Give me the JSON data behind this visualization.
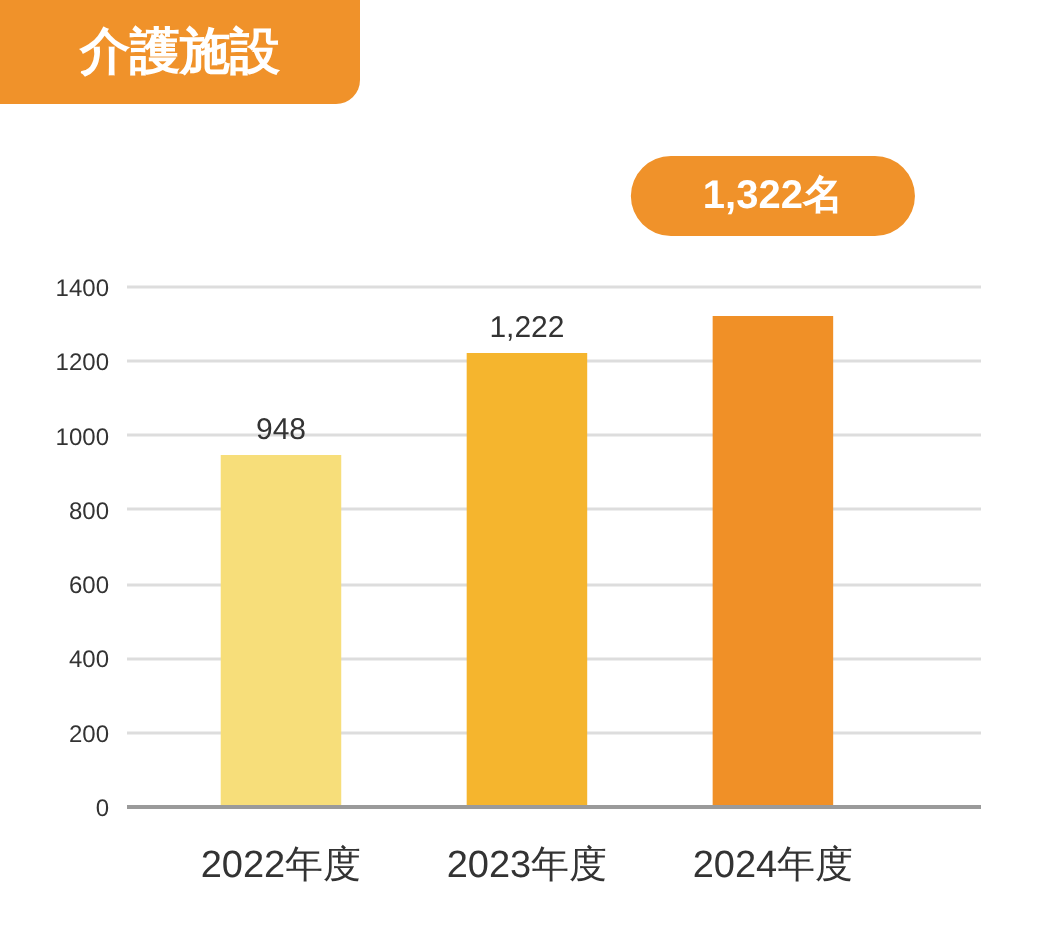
{
  "chart_data": {
    "type": "bar",
    "title": "介護施設",
    "categories": [
      "2022年度",
      "2023年度",
      "2024年度"
    ],
    "values": [
      948,
      1222,
      1322
    ],
    "colors": [
      "#f7de7a",
      "#f5b52e",
      "#f09027"
    ],
    "ylim": [
      0,
      1400
    ],
    "yticks": [
      0,
      200,
      400,
      600,
      800,
      1000,
      1200,
      1400
    ],
    "grid": "y",
    "value_labels": [
      "948",
      "1,222",
      null
    ],
    "annotations": [
      {
        "text": "1,322名",
        "x": "2024年度",
        "y": 1322
      }
    ]
  }
}
